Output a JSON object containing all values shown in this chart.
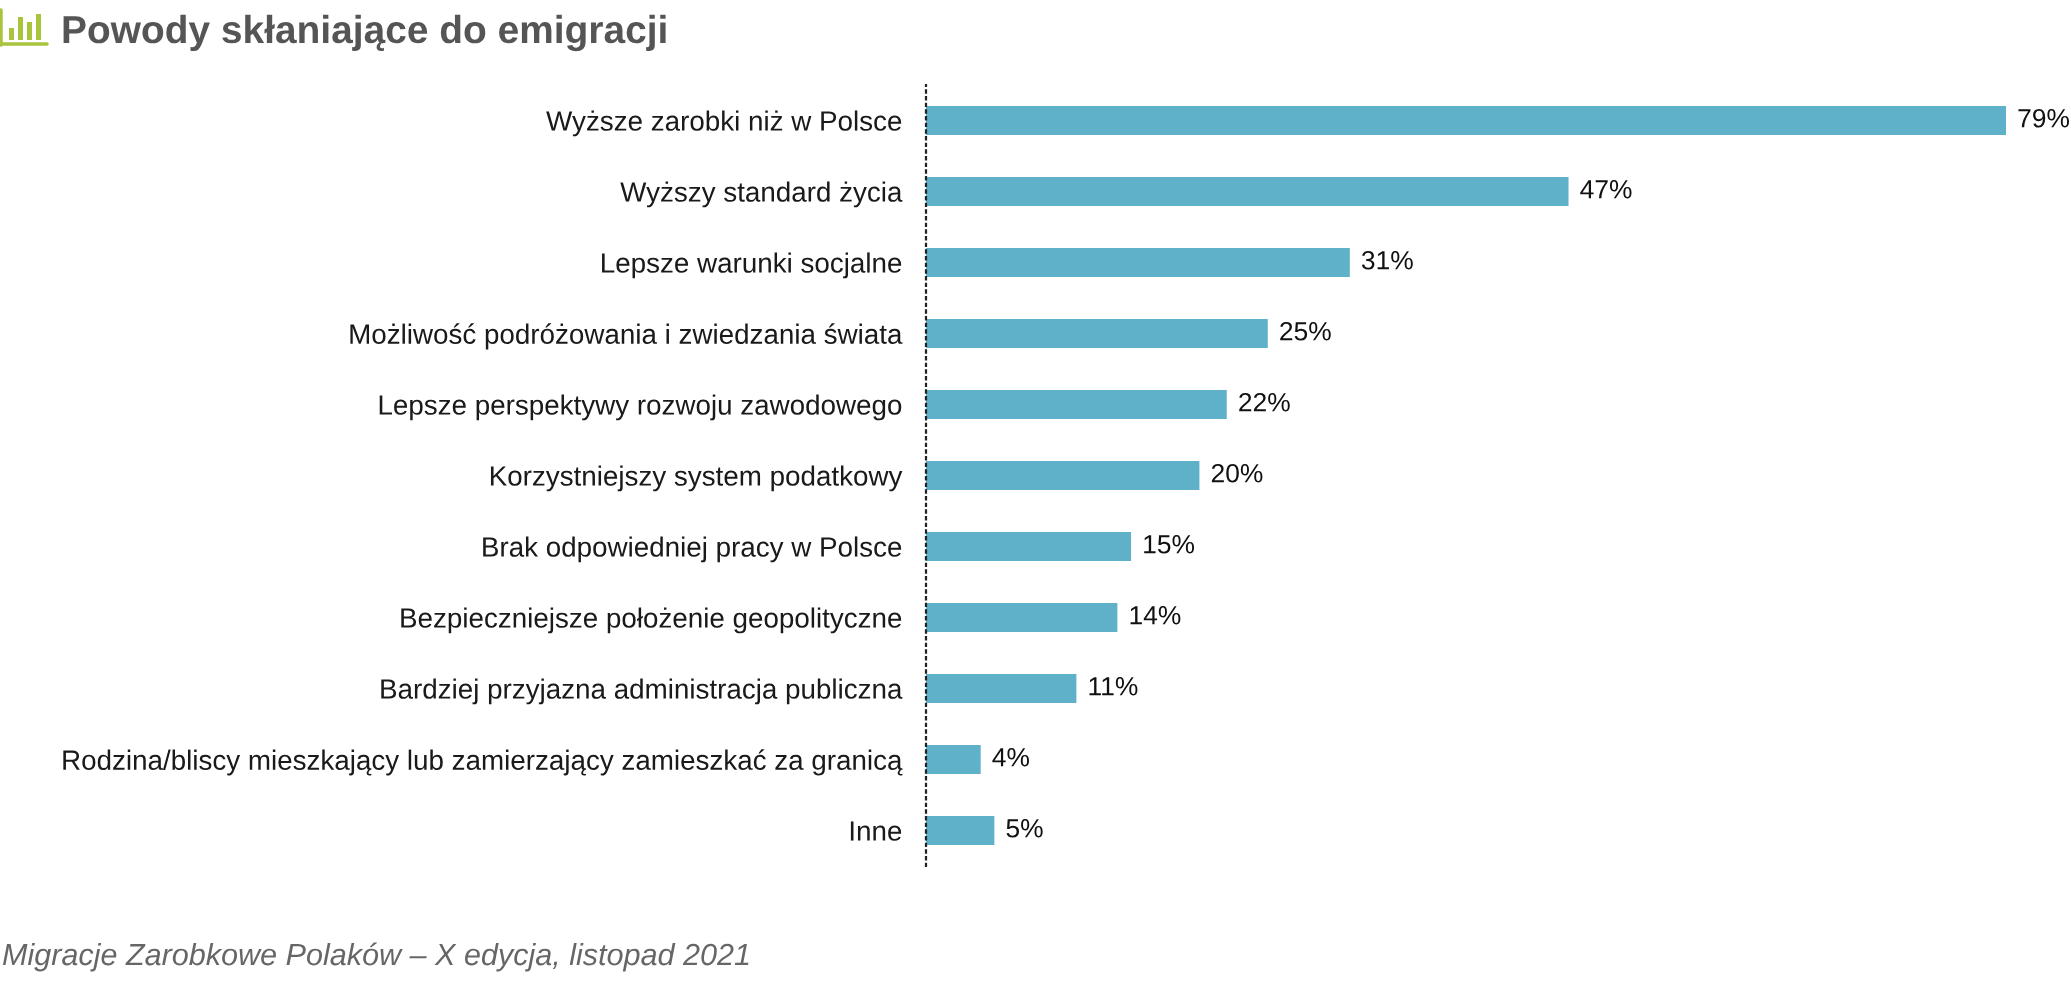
{
  "chart_data": {
    "type": "bar",
    "orientation": "horizontal",
    "title": "Powody skłaniające do emigracji",
    "categories": [
      "Wyższe zarobki niż w Polsce",
      "Wyższy standard życia",
      "Lepsze warunki socjalne",
      "Możliwość podróżowania i zwiedzania świata",
      "Lepsze perspektywy rozwoju zawodowego",
      "Korzystniejszy system podatkowy",
      "Brak odpowiedniej pracy w Polsce",
      "Bezpieczniejsze położenie geopolityczne",
      "Bardziej przyjazna administracja publiczna",
      "Rodzina/bliscy mieszkający lub zamierzający zamieszkać za granicą",
      "Inne"
    ],
    "values": [
      79,
      47,
      31,
      25,
      22,
      20,
      15,
      14,
      11,
      4,
      5
    ],
    "value_labels": [
      "79%",
      "47%",
      "31%",
      "25%",
      "22%",
      "20%",
      "15%",
      "14%",
      "11%",
      "4%",
      "5%"
    ],
    "color": "#5eb1c9",
    "tick_labels": "y",
    "grid": false,
    "annotations": [
      "Migracje Zarobkowe Polaków – X edycja, listopad 2021"
    ]
  }
}
